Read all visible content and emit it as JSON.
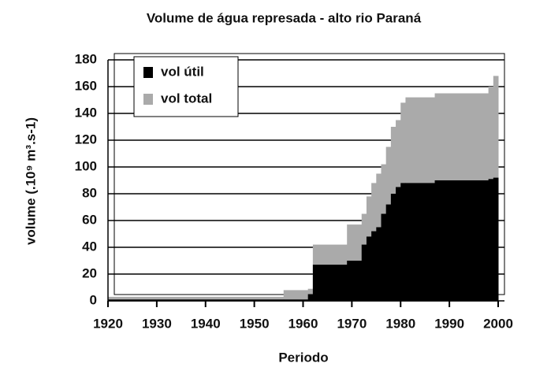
{
  "chart_data": {
    "type": "step-area",
    "title": "Volume de água represada - alto rio Paraná",
    "x_label": "Periodo",
    "y_label": "volume (.10⁹ m³.s-1)",
    "x": [
      1920,
      1956,
      1961,
      1962,
      1969,
      1972,
      1973,
      1974,
      1975,
      1976,
      1977,
      1978,
      1979,
      1980,
      1981,
      1987,
      1998,
      1999
    ],
    "series": [
      {
        "name": "vol total",
        "color": "#aaaaaa",
        "values": [
          3,
          8,
          9,
          42,
          57,
          65,
          78,
          88,
          95,
          102,
          115,
          130,
          135,
          148,
          152,
          155,
          160,
          168
        ]
      },
      {
        "name": "vol útil",
        "color": "#000000",
        "values": [
          1,
          1,
          5,
          27,
          30,
          42,
          48,
          52,
          55,
          65,
          72,
          80,
          85,
          88,
          88,
          90,
          91,
          92
        ]
      }
    ],
    "xlim": [
      1920,
      2000
    ],
    "xticks": [
      1920,
      1930,
      1940,
      1950,
      1960,
      1970,
      1980,
      1990,
      2000
    ],
    "ylim": [
      0,
      180
    ],
    "yticks": [
      0,
      20,
      40,
      60,
      80,
      100,
      120,
      140,
      160,
      180
    ],
    "grid": true
  }
}
